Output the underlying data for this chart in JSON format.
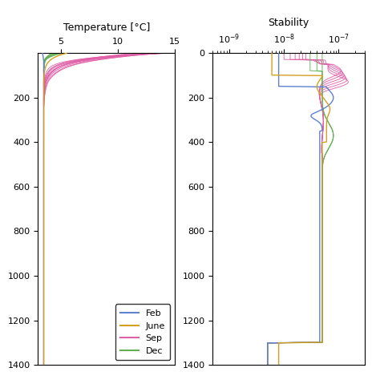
{
  "title_left": "Temperature [°C]",
  "title_right": "Stability",
  "temp_xlim": [
    3,
    15
  ],
  "temp_xticks": [
    5,
    10,
    15
  ],
  "depth_ylim": [
    1400,
    0
  ],
  "depth_yticks_left": [
    200,
    400,
    600,
    800,
    1000,
    1200,
    1400
  ],
  "depth_yticks_right": [
    0,
    200,
    400,
    600,
    800,
    1000,
    1200,
    1400
  ],
  "stab_xlim": [
    5e-10,
    3e-07
  ],
  "colors": {
    "Feb": "#6080d0",
    "June": "#d4a020",
    "Sep": "#e060a8",
    "Dec": "#60b050"
  },
  "legend_labels": [
    "Feb",
    "June",
    "Sep",
    "Dec"
  ]
}
